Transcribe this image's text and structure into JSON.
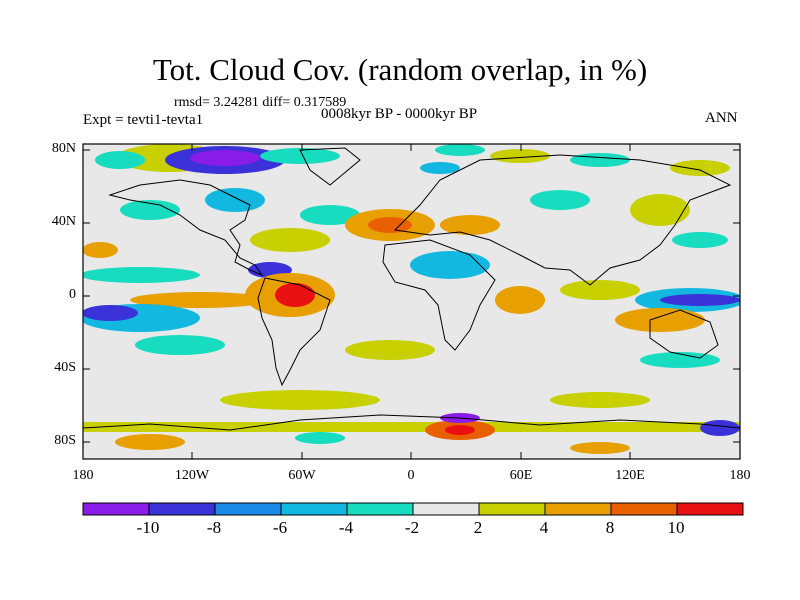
{
  "title": "Tot. Cloud Cov. (random overlap, in %)",
  "stats": "rmsd= 3.24281 diff= 0.317589",
  "experiment": "Expt = tevti1-tevta1",
  "period": "0008kyr BP - 0000kyr BP",
  "season": "ANN",
  "axes": {
    "y_ticks": [
      "80N",
      "40N",
      "0",
      "40S",
      "80S"
    ],
    "x_ticks": [
      "180",
      "120W",
      "60W",
      "0",
      "60E",
      "120E",
      "180"
    ]
  },
  "colorbar": {
    "labels": [
      "-10",
      "-8",
      "-6",
      "-4",
      "-2",
      "2",
      "4",
      "8",
      "10"
    ],
    "colors": [
      "#8a1ce8",
      "#3a32d8",
      "#1a8ae8",
      "#12b8e0",
      "#18dcc0",
      "#e8e8e8",
      "#c8d000",
      "#e8a000",
      "#e86000",
      "#e81010"
    ]
  }
}
